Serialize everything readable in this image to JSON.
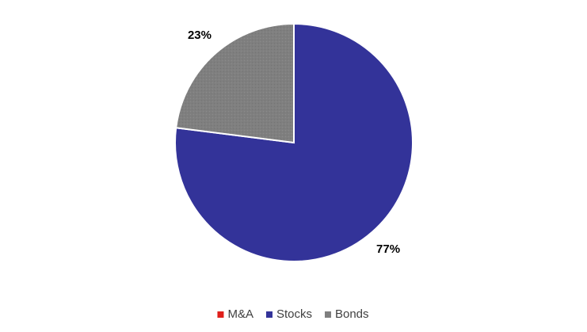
{
  "chart_data": {
    "type": "pie",
    "title": "",
    "categories": [
      "M&A",
      "Stocks",
      "Bonds"
    ],
    "values": [
      0,
      77,
      23
    ],
    "data_labels": [
      "",
      "77%",
      "23%"
    ],
    "colors": [
      "#e0201b",
      "#333399",
      "#7f7f7f"
    ],
    "legend": {
      "position": "bottom",
      "entries": [
        "M&A",
        "Stocks",
        "Bonds"
      ]
    }
  }
}
